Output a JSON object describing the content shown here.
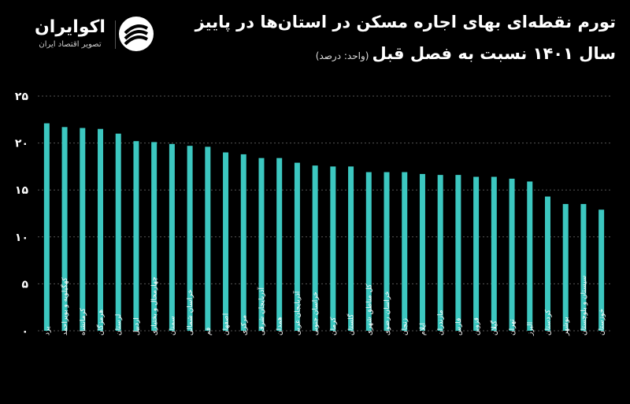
{
  "header": {
    "title_line1": "تورم نقطه‌ای بهای اجاره مسکن در استان‌ها در پاییز",
    "title_line2": "سال ۱۴۰۱ نسبت به فصل قبل",
    "unit": "(واحد: درصد)"
  },
  "brand": {
    "name": "اکوایران",
    "tagline": "تصویر اقتصاد ایران"
  },
  "colors": {
    "bar": "#3cc7c0",
    "background": "#000000",
    "grid": "#555555"
  },
  "chart_data": {
    "type": "bar",
    "title": "تورم نقطه‌ای بهای اجاره مسکن در استان‌ها در پاییز سال ۱۴۰۱ نسبت به فصل قبل",
    "ylabel": "",
    "xlabel": "",
    "ylim": [
      0,
      25
    ],
    "yticks": [
      0,
      5,
      10,
      15,
      20,
      25
    ],
    "ytick_labels": [
      "۰",
      "۵",
      "۱۰",
      "۱۵",
      "۲۰",
      "۲۵"
    ],
    "grid": true,
    "categories": [
      "یزد",
      "کهگیلویه و بویراحمد",
      "کرمانشاه",
      "هرمزگان",
      "لرستان",
      "اردبیل",
      "چهارمحال و بختیاری",
      "سمنان",
      "خراسان شمالی",
      "قم",
      "اصفهان",
      "مرکزی",
      "آذربایجان شرقی",
      "همدان",
      "آذربایجان غربی",
      "خراسان جنوبی",
      "کرمان",
      "گلستان",
      "کل مناطق شهری",
      "خراسان رضوی",
      "زنجان",
      "ایلام",
      "مازندران",
      "فارس",
      "قزوین",
      "گیلان",
      "تهران",
      "البرز",
      "کردستان",
      "بوشهر",
      "سیستان و بلوچستان",
      "خوزستان"
    ],
    "values": [
      22.1,
      21.7,
      21.6,
      21.5,
      21.0,
      20.2,
      20.1,
      19.9,
      19.7,
      19.6,
      19.0,
      18.8,
      18.4,
      18.4,
      17.9,
      17.6,
      17.5,
      17.5,
      16.9,
      16.9,
      16.9,
      16.7,
      16.6,
      16.6,
      16.4,
      16.4,
      16.2,
      15.9,
      14.3,
      13.5,
      13.5,
      12.9
    ]
  }
}
